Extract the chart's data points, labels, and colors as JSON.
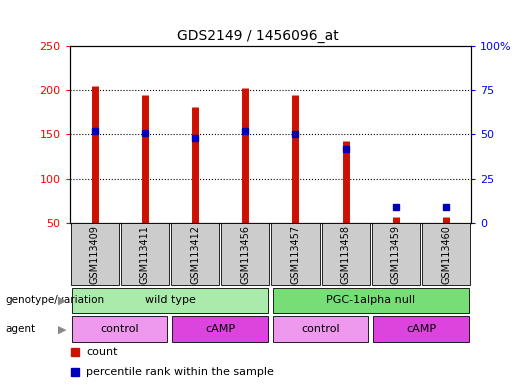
{
  "title": "GDS2149 / 1456096_at",
  "samples": [
    "GSM113409",
    "GSM113411",
    "GSM113412",
    "GSM113456",
    "GSM113457",
    "GSM113458",
    "GSM113459",
    "GSM113460"
  ],
  "count_values": [
    205,
    195,
    181,
    202,
    195,
    143,
    57,
    57
  ],
  "percentile_values": [
    52,
    51,
    48,
    52,
    50,
    42,
    9,
    9
  ],
  "ylim_left": [
    50,
    250
  ],
  "ylim_right": [
    0,
    100
  ],
  "yticks_left": [
    50,
    100,
    150,
    200,
    250
  ],
  "yticks_right": [
    0,
    25,
    50,
    75,
    100
  ],
  "yticklabels_right": [
    "0",
    "25",
    "50",
    "75",
    "100%"
  ],
  "bar_color": "#cc1100",
  "dot_color": "#0000bb",
  "genotype_groups": [
    {
      "label": "wild type",
      "start": 0,
      "end": 4,
      "color": "#aaeaaa"
    },
    {
      "label": "PGC-1alpha null",
      "start": 4,
      "end": 8,
      "color": "#77dd77"
    }
  ],
  "agent_groups": [
    {
      "label": "control",
      "start": 0,
      "end": 2,
      "color": "#ee99ee"
    },
    {
      "label": "cAMP",
      "start": 2,
      "end": 4,
      "color": "#dd44dd"
    },
    {
      "label": "control",
      "start": 4,
      "end": 6,
      "color": "#ee99ee"
    },
    {
      "label": "cAMP",
      "start": 6,
      "end": 8,
      "color": "#dd44dd"
    }
  ],
  "legend_count_label": "count",
  "legend_percentile_label": "percentile rank within the sample",
  "genotype_label": "genotype/variation",
  "agent_label": "agent",
  "bg_color": "#ffffff",
  "label_area_color": "#cccccc"
}
